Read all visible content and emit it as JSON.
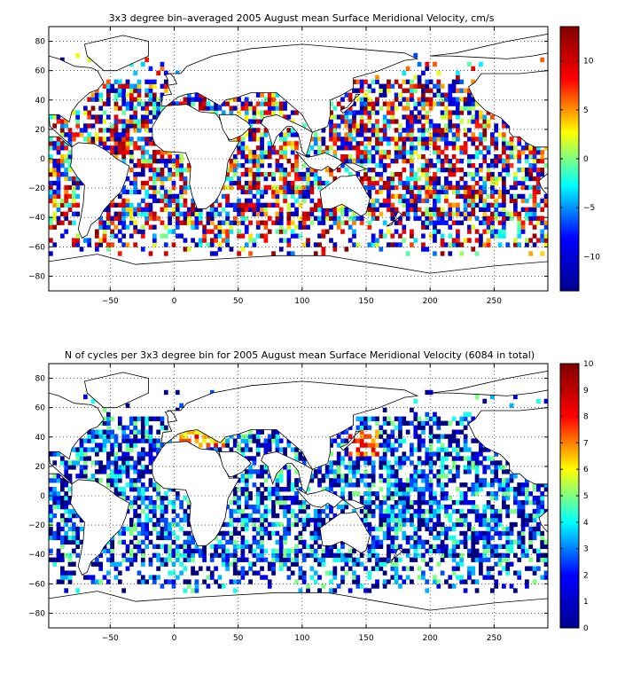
{
  "chart_data": [
    {
      "type": "heatmap",
      "title": "3x3 degree bin–averaged 2005 August mean Surface Meridional Velocity, cm/s",
      "xlim": [
        -98,
        292
      ],
      "ylim": [
        -90,
        90
      ],
      "xticks": [
        -50,
        0,
        50,
        100,
        150,
        200,
        250
      ],
      "yticks": [
        -80,
        -60,
        -40,
        -20,
        0,
        20,
        40,
        60,
        80
      ],
      "grid": "dotted",
      "bin_size_deg": 3,
      "colorbar": {
        "colormap": "jet",
        "clim": [
          -13.5,
          13.5
        ],
        "ticks": [
          -10,
          -5,
          0,
          5,
          10
        ],
        "colors": [
          "#00008F",
          "#0000FF",
          "#00FFFF",
          "#FFFF00",
          "#FF0000",
          "#800000"
        ]
      },
      "data_description": "Dense sampling in North Atlantic, North Pacific, tropics; sparse coverage south of 50S; strong positive values along Gulf Stream, Kuroshio and Agulhas regions."
    },
    {
      "type": "heatmap",
      "title": "N of cycles per 3x3 degree bin for 2005 August mean Surface Meridional Velocity (6084 in total)",
      "total": 6084,
      "xlim": [
        -98,
        292
      ],
      "ylim": [
        -90,
        90
      ],
      "xticks": [
        -50,
        0,
        50,
        100,
        150,
        200,
        250
      ],
      "yticks": [
        -80,
        -60,
        -40,
        -20,
        0,
        20,
        40,
        60,
        80
      ],
      "grid": "dotted",
      "bin_size_deg": 3,
      "colorbar": {
        "colormap": "jet",
        "clim": [
          0,
          10
        ],
        "ticks": [
          0,
          1,
          2,
          3,
          4,
          5,
          6,
          7,
          8,
          9,
          10
        ],
        "colors": [
          "#00008F",
          "#0000FF",
          "#00FFFF",
          "#FFFF00",
          "#FF0000",
          "#800000"
        ]
      },
      "data_description": "Most bins contain 1–4 cycles; high counts (8–10) clustered near Japan (~145E, 35N) and Mediterranean."
    }
  ]
}
